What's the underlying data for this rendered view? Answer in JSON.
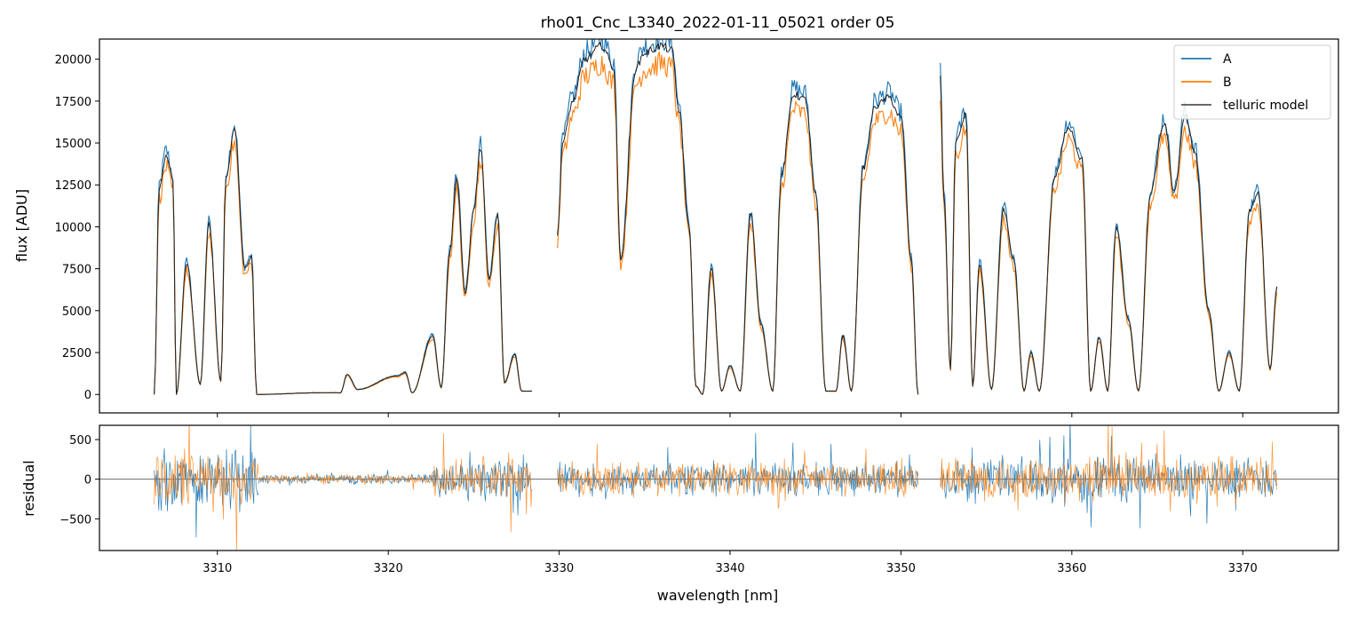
{
  "chart_data": [
    {
      "type": "line",
      "title": "rho01_Cnc_L3340_2022-01-11_05021  order 05",
      "xlabel": "",
      "ylabel": "flux [ADU]",
      "xlim": [
        3303.1,
        3375.6
      ],
      "ylim": [
        -1100,
        21200
      ],
      "yticks": [
        0,
        2500,
        5000,
        7500,
        10000,
        12500,
        15000,
        17500,
        20000
      ],
      "ytick_labels": [
        "0",
        "2500",
        "5000",
        "7500",
        "10000",
        "12500",
        "15000",
        "17500",
        "20000"
      ],
      "xticks": [
        3310,
        3320,
        3330,
        3340,
        3350,
        3360,
        3370
      ],
      "legend": {
        "position": "top-right",
        "entries": [
          "A",
          "B",
          "telluric model"
        ]
      },
      "series": [
        {
          "name": "A",
          "color": "#1f77b4"
        },
        {
          "name": "B",
          "color": "#ff7f0e"
        },
        {
          "name": "telluric model",
          "color": "#222222"
        }
      ],
      "segments": [
        {
          "x": [
            3306.3,
            3306.6,
            3307.0,
            3307.4,
            3307.6,
            3308.2,
            3309.0,
            3309.5,
            3310.2,
            3310.5,
            3311.0,
            3311.6,
            3312.0,
            3312.3
          ],
          "y": [
            0,
            12300,
            14300,
            12800,
            0,
            7800,
            600,
            10200,
            800,
            13000,
            15800,
            7500,
            8200,
            0
          ]
        },
        {
          "x": [
            3312.3,
            3316.0,
            3317.2,
            3317.6,
            3318.2,
            3320.5,
            3321.0,
            3321.4,
            3322.6
          ],
          "y": [
            0,
            100,
            100,
            1200,
            300,
            1100,
            1300,
            100,
            3500
          ]
        },
        {
          "x": [
            3322.6,
            3323.1,
            3323.6,
            3324.0,
            3324.5,
            3325.0,
            3325.4,
            3325.9,
            3326.4,
            3326.8,
            3327.4,
            3327.8,
            3328.4
          ],
          "y": [
            3500,
            400,
            8500,
            12900,
            6000,
            11000,
            14700,
            6800,
            10700,
            700,
            2400,
            200,
            200
          ]
        },
        {
          "x": [
            3329.9,
            3330.2,
            3330.8,
            3331.5,
            3332.5,
            3333.2,
            3333.6,
            3334.5,
            3335.0,
            3336.0,
            3336.6,
            3337.0,
            3337.6,
            3338.0,
            3338.4
          ],
          "y": [
            9500,
            15000,
            17500,
            20000,
            20800,
            19500,
            8100,
            19500,
            20400,
            20800,
            20500,
            17000,
            10000,
            500,
            0
          ]
        },
        {
          "x": [
            3338.4,
            3338.9,
            3339.5,
            3340.0,
            3340.6,
            3341.2,
            3341.8,
            3342.5,
            3343.0,
            3343.7,
            3344.4,
            3345.0,
            3345.6,
            3346.2,
            3346.6,
            3347.1,
            3347.8,
            3348.5,
            3349.3,
            3350.0,
            3350.6,
            3351.0
          ],
          "y": [
            0,
            7600,
            200,
            1700,
            200,
            10800,
            4200,
            200,
            13000,
            17900,
            17600,
            12000,
            200,
            200,
            3500,
            200,
            13500,
            17200,
            17700,
            16500,
            8000,
            0
          ]
        },
        {
          "x": [
            3352.3,
            3352.5,
            3352.9,
            3353.2,
            3353.8,
            3354.2,
            3354.6,
            3355.3,
            3356.0,
            3356.6,
            3357.2,
            3357.6,
            3358.1,
            3359.0,
            3359.8,
            3360.6,
            3361.1,
            3361.6,
            3362.1,
            3362.6,
            3363.3,
            3363.9
          ],
          "y": [
            18800,
            12000,
            1500,
            15000,
            16700,
            500,
            7800,
            300,
            11000,
            8000,
            200,
            2500,
            200,
            13000,
            16000,
            14000,
            200,
            3400,
            200,
            10000,
            4500,
            200
          ]
        },
        {
          "x": [
            3363.9,
            3364.6,
            3365.4,
            3366.0,
            3366.6,
            3367.2,
            3368.0,
            3368.6,
            3369.2,
            3369.8,
            3370.4,
            3370.9,
            3371.6,
            3372.0
          ],
          "y": [
            200,
            12000,
            16200,
            12000,
            16600,
            14500,
            5000,
            200,
            2500,
            200,
            11000,
            12000,
            1500,
            6400
          ]
        }
      ]
    },
    {
      "type": "line",
      "title": "",
      "xlabel": "wavelength [nm]",
      "ylabel": "residual",
      "xlim": [
        3303.1,
        3375.6
      ],
      "ylim": [
        -900,
        680
      ],
      "yticks": [
        -500,
        0,
        500
      ],
      "ytick_labels": [
        "−500",
        "0",
        "500"
      ],
      "xticks": [
        3310,
        3320,
        3330,
        3340,
        3350,
        3360,
        3370
      ],
      "xtick_labels": [
        "3310",
        "3320",
        "3330",
        "3340",
        "3350",
        "3360",
        "3370"
      ],
      "zero_line": true,
      "series": [
        {
          "name": "A",
          "color": "#1f77b4"
        },
        {
          "name": "B",
          "color": "#ff7f0e"
        }
      ],
      "ranges": [
        {
          "x0": 3306.3,
          "x1": 3312.4,
          "amplitude": 450
        },
        {
          "x0": 3312.4,
          "x1": 3322.6,
          "amplitude": 70
        },
        {
          "x0": 3322.6,
          "x1": 3328.4,
          "amplitude": 280
        },
        {
          "x0": 3329.9,
          "x1": 3351.0,
          "amplitude": 240
        },
        {
          "x0": 3352.3,
          "x1": 3372.0,
          "amplitude": 330
        }
      ]
    }
  ]
}
